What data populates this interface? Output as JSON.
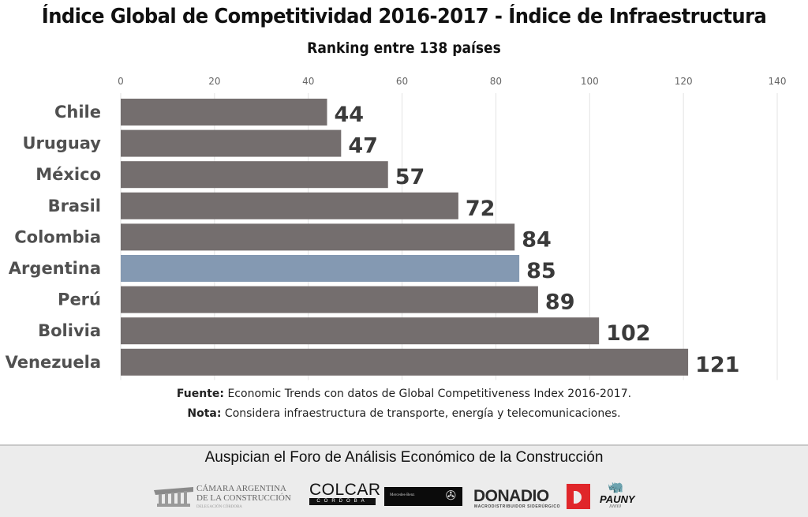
{
  "chart_data": {
    "type": "bar",
    "orientation": "horizontal",
    "title": "Índice Global de Competitividad 2016-2017 - Índice de Infraestructura",
    "subtitle": "Ranking entre 138 países",
    "xlabel": "",
    "ylabel": "",
    "xlim": [
      0,
      140
    ],
    "ticks": [
      0,
      20,
      40,
      60,
      80,
      100,
      120,
      140
    ],
    "tick_labels": [
      "0",
      "20",
      "40",
      "60",
      "80",
      "100",
      "120",
      "140"
    ],
    "axis_position": "top",
    "grid": true,
    "legend": "none",
    "categories": [
      "Chile",
      "Uruguay",
      "México",
      "Brasil",
      "Colombia",
      "Argentina",
      "Perú",
      "Bolivia",
      "Venezuela"
    ],
    "values": [
      44,
      47,
      57,
      72,
      84,
      85,
      89,
      102,
      121
    ],
    "data_labels": [
      "44",
      "47",
      "57",
      "72",
      "84",
      "85",
      "89",
      "102",
      "121"
    ],
    "highlight": "Argentina",
    "colors": {
      "default": "#746e6e",
      "highlight": "#8499b2"
    }
  },
  "notes": {
    "source_label": "Fuente:",
    "source_text": " Economic Trends con datos de Global Competitiveness Index 2016-2017.",
    "note_label": "Nota:",
    "note_text": " Considera infraestructura de transporte, energía y telecomunicaciones."
  },
  "footer": {
    "title": "Auspician el Foro de Análisis Económico de la Construcción",
    "sponsors": {
      "camara_line1": "CÁMARA ARGENTINA",
      "camara_line2": "DE LA CONSTRUCCIÓN",
      "camara_line3": "DELEGACIÓN CÓRDOBA",
      "colcar": "COLCAR",
      "colcar_sub": "CÓRDOBA",
      "mercedes": "Mercedes-Benz",
      "donadio": "DONADIO",
      "donadio_sub": "MACRODISTRIBUIDOR SIDERÚRGICO",
      "pauny": "PAUNY"
    }
  }
}
